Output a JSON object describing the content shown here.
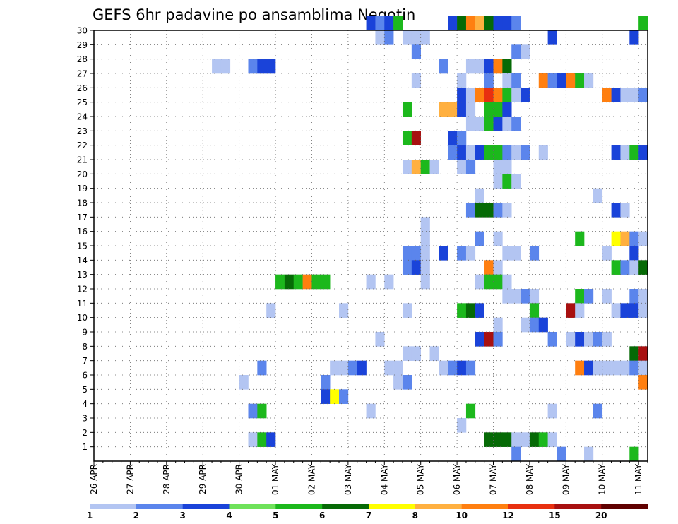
{
  "chart_data": {
    "type": "heatmap",
    "title": "GEFS 6hr padavine po ansamblima Negotin",
    "xlabel": "",
    "ylabel": "",
    "y_ticks": [
      "1",
      "2",
      "3",
      "4",
      "5",
      "6",
      "7",
      "8",
      "9",
      "10",
      "11",
      "12",
      "13",
      "14",
      "15",
      "16",
      "17",
      "18",
      "19",
      "20",
      "21",
      "22",
      "23",
      "24",
      "25",
      "26",
      "27",
      "28",
      "29",
      "30"
    ],
    "ylim": [
      1,
      30
    ],
    "x_ticks": [
      "26 APR",
      "27 APR",
      "28 APR",
      "29 APR",
      "30 APR",
      "01 MAY",
      "02 MAY",
      "03 MAY",
      "04 MAY",
      "05 MAY",
      "06 MAY",
      "07 MAY",
      "08 MAY",
      "09 MAY",
      "10 MAY",
      "11 MAY"
    ],
    "x_step_hours": 6,
    "colorbar": {
      "tick_labels": [
        "1",
        "2",
        "3",
        "4",
        "5",
        "6",
        "7",
        "8",
        "10",
        "12",
        "15",
        "20"
      ],
      "colors": [
        "#b3c5f2",
        "#5b85ec",
        "#1a43d9",
        "#6fe25a",
        "#1cb81c",
        "#066a06",
        "#ffff00",
        "#ffb040",
        "#ff7f10",
        "#e83010",
        "#a81010",
        "#600000"
      ]
    },
    "grid": true,
    "bins_legend": "color index 0..11 corresponds to colorbar intervals",
    "cells": [
      [
        30,
        30,
        2
      ],
      [
        30,
        31,
        1
      ],
      [
        30,
        32,
        2
      ],
      [
        30,
        33,
        4
      ],
      [
        30,
        39,
        2
      ],
      [
        30,
        40,
        5
      ],
      [
        30,
        41,
        8
      ],
      [
        30,
        42,
        7
      ],
      [
        30,
        43,
        5
      ],
      [
        30,
        44,
        2
      ],
      [
        30,
        45,
        2
      ],
      [
        30,
        46,
        1
      ],
      [
        30,
        60,
        4
      ],
      [
        29,
        31,
        0
      ],
      [
        29,
        32,
        1
      ],
      [
        29,
        34,
        0
      ],
      [
        29,
        35,
        0
      ],
      [
        29,
        36,
        0
      ],
      [
        29,
        50,
        2
      ],
      [
        29,
        59,
        2
      ],
      [
        28,
        35,
        1
      ],
      [
        28,
        46,
        1
      ],
      [
        28,
        47,
        0
      ],
      [
        27,
        13,
        0
      ],
      [
        27,
        14,
        0
      ],
      [
        27,
        17,
        1
      ],
      [
        27,
        18,
        2
      ],
      [
        27,
        19,
        2
      ],
      [
        27,
        38,
        1
      ],
      [
        27,
        41,
        0
      ],
      [
        27,
        42,
        0
      ],
      [
        27,
        43,
        2
      ],
      [
        27,
        44,
        8
      ],
      [
        27,
        45,
        5
      ],
      [
        26,
        35,
        0
      ],
      [
        26,
        40,
        0
      ],
      [
        26,
        43,
        1
      ],
      [
        26,
        45,
        0
      ],
      [
        26,
        46,
        1
      ],
      [
        26,
        49,
        8
      ],
      [
        26,
        50,
        1
      ],
      [
        26,
        51,
        2
      ],
      [
        26,
        52,
        8
      ],
      [
        26,
        53,
        4
      ],
      [
        26,
        54,
        0
      ],
      [
        25,
        40,
        2
      ],
      [
        25,
        41,
        0
      ],
      [
        25,
        42,
        8
      ],
      [
        25,
        43,
        9
      ],
      [
        25,
        44,
        8
      ],
      [
        25,
        45,
        4
      ],
      [
        25,
        46,
        0
      ],
      [
        25,
        47,
        2
      ],
      [
        25,
        56,
        8
      ],
      [
        25,
        57,
        2
      ],
      [
        25,
        58,
        0
      ],
      [
        25,
        59,
        0
      ],
      [
        25,
        60,
        1
      ],
      [
        24,
        34,
        4
      ],
      [
        24,
        38,
        7
      ],
      [
        24,
        39,
        7
      ],
      [
        24,
        40,
        2
      ],
      [
        24,
        41,
        0
      ],
      [
        24,
        43,
        4
      ],
      [
        24,
        44,
        4
      ],
      [
        24,
        45,
        2
      ],
      [
        23,
        41,
        0
      ],
      [
        23,
        42,
        0
      ],
      [
        23,
        43,
        4
      ],
      [
        23,
        44,
        2
      ],
      [
        23,
        45,
        0
      ],
      [
        23,
        46,
        1
      ],
      [
        22,
        34,
        4
      ],
      [
        22,
        35,
        10
      ],
      [
        22,
        39,
        2
      ],
      [
        22,
        40,
        1
      ],
      [
        21,
        39,
        1
      ],
      [
        21,
        40,
        2
      ],
      [
        21,
        41,
        0
      ],
      [
        21,
        42,
        2
      ],
      [
        21,
        43,
        4
      ],
      [
        21,
        44,
        4
      ],
      [
        21,
        45,
        1
      ],
      [
        21,
        46,
        0
      ],
      [
        21,
        47,
        1
      ],
      [
        21,
        49,
        0
      ],
      [
        21,
        57,
        2
      ],
      [
        21,
        58,
        0
      ],
      [
        21,
        59,
        4
      ],
      [
        21,
        60,
        2
      ],
      [
        20,
        34,
        0
      ],
      [
        20,
        35,
        7
      ],
      [
        20,
        36,
        4
      ],
      [
        20,
        37,
        0
      ],
      [
        20,
        40,
        0
      ],
      [
        20,
        41,
        1
      ],
      [
        20,
        44,
        0
      ],
      [
        20,
        45,
        0
      ],
      [
        19,
        44,
        0
      ],
      [
        19,
        45,
        4
      ],
      [
        19,
        46,
        0
      ],
      [
        18,
        42,
        0
      ],
      [
        18,
        55,
        0
      ],
      [
        17,
        41,
        1
      ],
      [
        17,
        42,
        5
      ],
      [
        17,
        43,
        5
      ],
      [
        17,
        44,
        1
      ],
      [
        17,
        45,
        0
      ],
      [
        17,
        57,
        2
      ],
      [
        17,
        58,
        0
      ],
      [
        16,
        36,
        0
      ],
      [
        15,
        36,
        0
      ],
      [
        15,
        42,
        1
      ],
      [
        15,
        44,
        0
      ],
      [
        15,
        53,
        4
      ],
      [
        15,
        57,
        6
      ],
      [
        15,
        58,
        7
      ],
      [
        15,
        59,
        1
      ],
      [
        15,
        60,
        0
      ],
      [
        14,
        34,
        1
      ],
      [
        14,
        35,
        1
      ],
      [
        14,
        36,
        0
      ],
      [
        14,
        38,
        2
      ],
      [
        14,
        40,
        1
      ],
      [
        14,
        41,
        0
      ],
      [
        14,
        45,
        0
      ],
      [
        14,
        46,
        0
      ],
      [
        14,
        48,
        1
      ],
      [
        14,
        56,
        0
      ],
      [
        14,
        59,
        2
      ],
      [
        13,
        34,
        1
      ],
      [
        13,
        35,
        2
      ],
      [
        13,
        36,
        0
      ],
      [
        13,
        43,
        8
      ],
      [
        13,
        44,
        0
      ],
      [
        13,
        57,
        4
      ],
      [
        13,
        58,
        1
      ],
      [
        13,
        59,
        0
      ],
      [
        13,
        60,
        5
      ],
      [
        12,
        20,
        4
      ],
      [
        12,
        21,
        5
      ],
      [
        12,
        22,
        4
      ],
      [
        12,
        23,
        8
      ],
      [
        12,
        24,
        4
      ],
      [
        12,
        25,
        4
      ],
      [
        12,
        30,
        0
      ],
      [
        12,
        32,
        0
      ],
      [
        12,
        36,
        0
      ],
      [
        12,
        42,
        0
      ],
      [
        12,
        43,
        4
      ],
      [
        12,
        44,
        4
      ],
      [
        12,
        45,
        0
      ],
      [
        11,
        45,
        0
      ],
      [
        11,
        46,
        0
      ],
      [
        11,
        47,
        1
      ],
      [
        11,
        48,
        0
      ],
      [
        11,
        53,
        4
      ],
      [
        11,
        54,
        1
      ],
      [
        11,
        56,
        0
      ],
      [
        11,
        59,
        1
      ],
      [
        11,
        60,
        0
      ],
      [
        10,
        19,
        0
      ],
      [
        10,
        27,
        0
      ],
      [
        10,
        34,
        0
      ],
      [
        10,
        40,
        4
      ],
      [
        10,
        41,
        5
      ],
      [
        10,
        42,
        2
      ],
      [
        10,
        48,
        4
      ],
      [
        10,
        52,
        10
      ],
      [
        10,
        53,
        0
      ],
      [
        10,
        57,
        0
      ],
      [
        10,
        58,
        2
      ],
      [
        10,
        59,
        2
      ],
      [
        10,
        60,
        0
      ],
      [
        9,
        44,
        0
      ],
      [
        9,
        47,
        0
      ],
      [
        9,
        48,
        1
      ],
      [
        9,
        49,
        2
      ],
      [
        8,
        31,
        0
      ],
      [
        8,
        42,
        2
      ],
      [
        8,
        43,
        10
      ],
      [
        8,
        44,
        1
      ],
      [
        8,
        50,
        1
      ],
      [
        8,
        52,
        0
      ],
      [
        8,
        53,
        2
      ],
      [
        8,
        54,
        0
      ],
      [
        8,
        55,
        1
      ],
      [
        8,
        56,
        0
      ],
      [
        7,
        34,
        0
      ],
      [
        7,
        35,
        0
      ],
      [
        7,
        37,
        0
      ],
      [
        7,
        59,
        5
      ],
      [
        7,
        60,
        10
      ],
      [
        6,
        18,
        1
      ],
      [
        6,
        26,
        0
      ],
      [
        6,
        27,
        0
      ],
      [
        6,
        28,
        1
      ],
      [
        6,
        29,
        2
      ],
      [
        6,
        32,
        0
      ],
      [
        6,
        33,
        0
      ],
      [
        6,
        38,
        0
      ],
      [
        6,
        39,
        1
      ],
      [
        6,
        40,
        2
      ],
      [
        6,
        41,
        1
      ],
      [
        6,
        53,
        8
      ],
      [
        6,
        54,
        2
      ],
      [
        6,
        55,
        0
      ],
      [
        6,
        56,
        0
      ],
      [
        6,
        57,
        0
      ],
      [
        6,
        58,
        0
      ],
      [
        6,
        59,
        1
      ],
      [
        6,
        60,
        0
      ],
      [
        5,
        16,
        0
      ],
      [
        5,
        25,
        1
      ],
      [
        5,
        33,
        0
      ],
      [
        5,
        34,
        1
      ],
      [
        5,
        60,
        8
      ],
      [
        4,
        25,
        2
      ],
      [
        4,
        26,
        6
      ],
      [
        4,
        27,
        1
      ],
      [
        3,
        17,
        1
      ],
      [
        3,
        18,
        4
      ],
      [
        3,
        30,
        0
      ],
      [
        3,
        41,
        4
      ],
      [
        3,
        50,
        0
      ],
      [
        3,
        55,
        1
      ],
      [
        2,
        40,
        0
      ],
      [
        1,
        17,
        0
      ],
      [
        1,
        18,
        4
      ],
      [
        1,
        19,
        2
      ],
      [
        1,
        43,
        5
      ],
      [
        1,
        44,
        5
      ],
      [
        1,
        45,
        5
      ],
      [
        1,
        46,
        0
      ],
      [
        1,
        47,
        0
      ],
      [
        1,
        48,
        5
      ],
      [
        1,
        49,
        4
      ],
      [
        1,
        50,
        0
      ],
      [
        0,
        46,
        1
      ],
      [
        0,
        51,
        1
      ],
      [
        0,
        54,
        0
      ],
      [
        0,
        59,
        4
      ]
    ]
  }
}
